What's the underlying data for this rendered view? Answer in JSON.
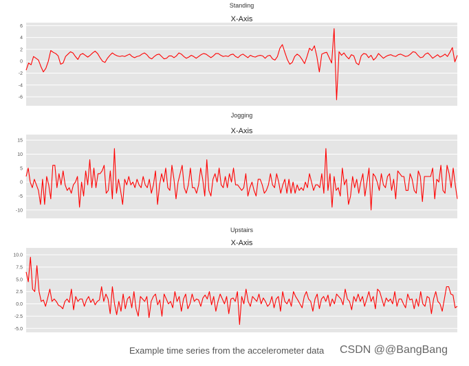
{
  "chart_data": [
    {
      "type": "line",
      "suptitle": "Standing",
      "title": "X-Axis",
      "ylim": [
        -7.5,
        6.5
      ],
      "yticks": [
        6,
        4,
        2,
        0,
        -2,
        -4,
        -6
      ],
      "tick_labels": [
        "6",
        "4",
        "2",
        "0",
        "-2",
        "-4",
        "-6"
      ],
      "grid": true,
      "color": "#ff0000",
      "series": [
        {
          "values": [
            -1.5,
            -0.3,
            -0.6,
            0.8,
            0.5,
            0.2,
            -0.9,
            -1.8,
            -1.2,
            0.0,
            1.8,
            1.5,
            1.3,
            0.9,
            -0.5,
            -0.3,
            0.8,
            1.2,
            1.6,
            1.4,
            0.8,
            0.3,
            1.1,
            1.3,
            1.0,
            0.7,
            1.0,
            1.4,
            1.7,
            1.3,
            0.6,
            0.0,
            -0.2,
            0.5,
            1.0,
            1.4,
            1.1,
            0.9,
            0.8,
            0.9,
            0.8,
            1.0,
            1.2,
            0.8,
            0.6,
            0.8,
            0.9,
            1.2,
            1.4,
            1.1,
            0.6,
            0.4,
            0.8,
            1.1,
            1.2,
            0.8,
            0.4,
            0.5,
            0.9,
            0.9,
            0.6,
            0.9,
            1.4,
            1.2,
            0.8,
            0.5,
            0.7,
            1.0,
            0.8,
            0.5,
            0.8,
            1.1,
            1.3,
            1.2,
            0.9,
            0.6,
            0.9,
            1.3,
            1.3,
            1.0,
            0.8,
            0.9,
            0.8,
            1.1,
            1.2,
            0.8,
            0.6,
            1.0,
            1.2,
            0.9,
            0.6,
            1.0,
            0.8,
            0.7,
            0.9,
            1.0,
            0.9,
            0.5,
            0.9,
            1.0,
            0.4,
            0.2,
            0.8,
            2.2,
            2.8,
            1.5,
            0.3,
            -0.5,
            -0.2,
            0.8,
            1.2,
            0.9,
            0.3,
            -0.4,
            0.8,
            2.2,
            1.8,
            2.6,
            0.8,
            -1.8,
            1.2,
            1.4,
            1.5,
            0.6,
            -0.3,
            5.5,
            -6.5,
            1.6,
            1.0,
            1.4,
            0.8,
            0.4,
            1.1,
            0.9,
            -0.3,
            -0.6,
            0.9,
            1.3,
            1.2,
            0.6,
            1.0,
            0.2,
            0.6,
            1.3,
            0.9,
            0.5,
            0.8,
            1.0,
            1.1,
            0.9,
            0.8,
            1.1,
            1.2,
            1.0,
            0.8,
            0.9,
            1.2,
            1.6,
            1.5,
            1.0,
            0.6,
            0.7,
            1.2,
            1.4,
            1.0,
            0.5,
            0.8,
            1.1,
            0.7,
            0.9,
            1.2,
            0.8,
            1.5,
            2.3,
            -0.1,
            1.0
          ]
        }
      ]
    },
    {
      "type": "line",
      "suptitle": "Jogging",
      "title": "X-Axis",
      "ylim": [
        -13,
        17
      ],
      "yticks": [
        15,
        10,
        5,
        0,
        -5,
        -10
      ],
      "tick_labels": [
        "15",
        "10",
        "5",
        "0",
        "-5",
        "-10"
      ],
      "grid": true,
      "color": "#ff0000",
      "series": [
        {
          "values": [
            2,
            5,
            0,
            -2,
            1,
            -1,
            -3,
            -8,
            1,
            -8,
            2,
            -1,
            -6,
            6,
            6,
            -2,
            3,
            -1,
            4,
            -1,
            -3,
            -2,
            -4,
            -1,
            0,
            2,
            -9,
            0,
            -5,
            4,
            -1,
            8,
            -2,
            5,
            -2,
            3,
            3,
            4,
            6,
            -4,
            -3,
            4,
            -6,
            12,
            -4,
            1,
            -3,
            -8,
            1,
            -1,
            2,
            -1,
            0,
            -2,
            1,
            -1,
            -2,
            2,
            -1,
            -2,
            1,
            -4,
            -1,
            4,
            -8,
            -1,
            3,
            0,
            5,
            -2,
            -3,
            6,
            1,
            -6,
            0,
            3,
            6,
            -2,
            -4,
            -1,
            5,
            -2,
            -2,
            -4,
            -1,
            5,
            1,
            -5,
            8,
            -3,
            -5,
            1,
            3,
            0,
            5,
            -1,
            -2,
            2,
            -2,
            3,
            0,
            5,
            -1,
            -1,
            -2,
            -3,
            -2,
            3,
            -5,
            -2,
            0,
            -3,
            -5,
            1,
            1,
            -1,
            -4,
            -3,
            -1,
            3,
            -1,
            -2,
            3,
            0,
            -4,
            -1,
            1,
            -4,
            1,
            -4,
            0,
            -4,
            -1,
            -3,
            -2,
            -3,
            0,
            -2,
            3,
            0,
            -3,
            -1,
            -1,
            -2,
            3,
            -4,
            12,
            -3,
            3,
            -9,
            2,
            -3,
            -2,
            -5,
            5,
            -1,
            1,
            -8,
            -5,
            2,
            -2,
            1,
            -4,
            0,
            3,
            -5,
            0,
            5,
            -10,
            3,
            2,
            0,
            -3,
            3,
            -1,
            -2,
            2,
            3,
            -3,
            1,
            -6,
            4,
            3,
            2,
            2,
            -3,
            -3,
            3,
            1,
            -3,
            -4,
            4,
            2,
            -7,
            2,
            2,
            2,
            2,
            5,
            -6,
            1,
            0,
            6,
            -3,
            -4,
            6,
            3,
            -2,
            5,
            -1,
            -6
          ]
        }
      ]
    },
    {
      "type": "line",
      "suptitle": "Upstairs",
      "title": "X-Axis",
      "ylim": [
        -5.8,
        11.4
      ],
      "yticks": [
        10.0,
        7.5,
        5.0,
        2.5,
        0.0,
        -2.5,
        -5.0
      ],
      "tick_labels": [
        "10.0",
        "7.5",
        "5.0",
        "2.5",
        "0.0",
        "-2.5",
        "-5.0"
      ],
      "grid": true,
      "color": "#ff0000",
      "series": [
        {
          "values": [
            6.5,
            4.5,
            9.5,
            3.0,
            2.5,
            7.8,
            2.5,
            0.5,
            0.8,
            -0.5,
            1.2,
            3.0,
            0.5,
            1.0,
            0.5,
            -0.3,
            -0.5,
            -1.0,
            0.5,
            1.0,
            0.3,
            3.0,
            -1.2,
            1.5,
            0.5,
            1.0,
            1.0,
            -0.5,
            0.8,
            1.5,
            0.3,
            1.0,
            -0.2,
            0.5,
            0.8,
            3.5,
            0.5,
            2.0,
            1.0,
            -2.0,
            3.5,
            0.0,
            -2.2,
            0.5,
            -1.5,
            2.0,
            -1.0,
            1.0,
            1.5,
            -0.8,
            2.5,
            -1.0,
            -2.5,
            1.5,
            1.0,
            0.5,
            1.5,
            -2.8,
            0.5,
            1.5,
            2.0,
            -0.2,
            0.8,
            -2.5,
            2.0,
            1.0,
            0.0,
            0.5,
            -0.8,
            2.5,
            0.5,
            1.5,
            -1.5,
            1.0,
            2.0,
            -1.0,
            0.0,
            2.0,
            0.5,
            1.0,
            0.8,
            -0.5,
            1.2,
            1.8,
            1.0,
            2.5,
            -0.2,
            1.5,
            -1.5,
            0.5,
            2.0,
            1.0,
            0.0,
            1.5,
            -2.0,
            1.0,
            1.2,
            0.5,
            2.5,
            -4.2,
            1.5,
            0.0,
            3.0,
            0.5,
            -0.5,
            1.5,
            1.0,
            0.5,
            2.0,
            0.0,
            1.2,
            0.5,
            -0.5,
            0.0,
            1.5,
            -0.8,
            1.0,
            1.5,
            -1.5,
            2.5,
            0.5,
            0.0,
            1.0,
            -0.5,
            2.5,
            1.5,
            0.8,
            0.0,
            -0.8,
            1.5,
            2.5,
            1.0,
            0.5,
            -1.5,
            1.0,
            2.0,
            -1.0,
            1.0,
            1.5,
            0.5,
            1.8,
            -0.5,
            1.0,
            0.0,
            2.0,
            1.5,
            1.0,
            -0.2,
            3.0,
            1.0,
            0.5,
            -1.2,
            1.5,
            0.5,
            2.0,
            0.5,
            1.5,
            -0.5,
            1.0,
            2.5,
            0.5,
            1.5,
            -1.0,
            3.0,
            2.5,
            1.0,
            -0.5,
            1.2,
            0.5,
            1.0,
            0.0,
            2.5,
            -0.5,
            1.0,
            1.0,
            0.0,
            -0.8,
            2.0,
            0.8,
            1.0,
            -1.0,
            1.0,
            -0.5,
            2.5,
            0.0,
            -0.5,
            1.5,
            1.2,
            -2.0,
            1.0,
            2.5,
            0.5,
            0.0,
            -1.5,
            1.0,
            3.5,
            3.5,
            2.0,
            1.8,
            -0.8,
            -0.5
          ]
        }
      ]
    }
  ],
  "caption": "Example time series from the accelerometer data",
  "watermark": "CSDN @@BangBang"
}
